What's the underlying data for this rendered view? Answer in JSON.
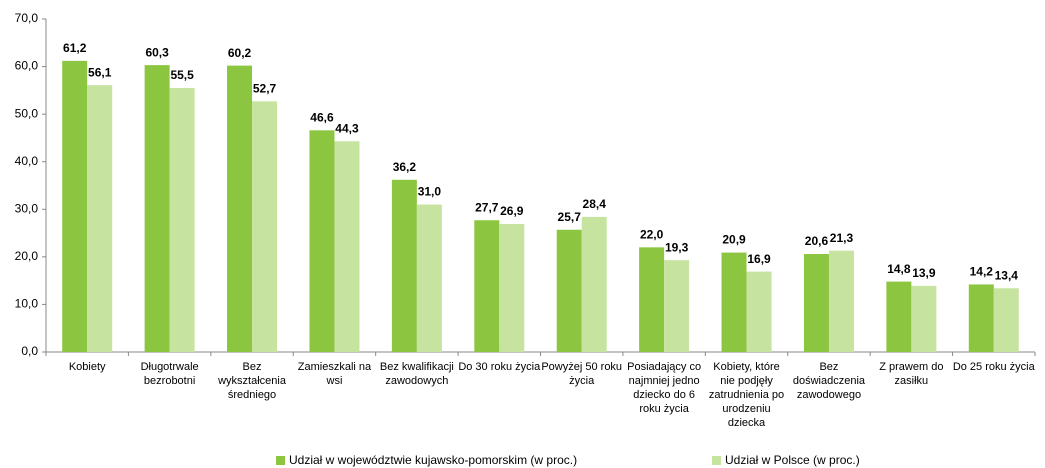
{
  "chart_data": {
    "type": "bar",
    "categories": [
      "Kobiety",
      "Długotrwale bezrobotni",
      "Bez wykształcenia średniego",
      "Zamieszkali na wsi",
      "Bez kwalifikacji zawodowych",
      "Do 30 roku życia",
      "Powyżej 50 roku życia",
      "Posiadający co najmniej jedno dziecko do 6 roku życia",
      "Kobiety, które nie podjęły zatrudnienia po urodzeniu dziecka",
      "Bez doświadczenia zawodowego",
      "Z prawem do zasiłku",
      "Do 25 roku życia"
    ],
    "series": [
      {
        "name": "Udział w województwie kujawsko-pomorskim (w proc.)",
        "color": "#8cc540",
        "values": [
          61.2,
          60.3,
          60.2,
          46.6,
          36.2,
          27.7,
          25.7,
          22.0,
          20.9,
          20.6,
          14.8,
          14.2
        ],
        "value_labels": [
          "61,2",
          "60,3",
          "60,2",
          "46,6",
          "36,2",
          "27,7",
          "25,7",
          "22,0",
          "20,9",
          "20,6",
          "14,8",
          "14,2"
        ]
      },
      {
        "name": "Udział w Polsce (w proc.)",
        "color": "#c6e4a0",
        "values": [
          56.1,
          55.5,
          52.7,
          44.3,
          31.0,
          26.9,
          28.4,
          19.3,
          16.9,
          21.3,
          13.9,
          13.4
        ],
        "value_labels": [
          "56,1",
          "55,5",
          "52,7",
          "44,3",
          "31,0",
          "26,9",
          "28,4",
          "19,3",
          "16,9",
          "21,3",
          "13,9",
          "13,4"
        ]
      }
    ],
    "ylim": [
      0,
      70
    ],
    "yticks": [
      {
        "value": 0,
        "label": "0,0"
      },
      {
        "value": 10,
        "label": "10,0"
      },
      {
        "value": 20,
        "label": "20,0"
      },
      {
        "value": 30,
        "label": "30,0"
      },
      {
        "value": 40,
        "label": "40,0"
      },
      {
        "value": 50,
        "label": "50,0"
      },
      {
        "value": 60,
        "label": "60,0"
      },
      {
        "value": 70,
        "label": "70,0"
      }
    ],
    "legend": "bottom"
  }
}
